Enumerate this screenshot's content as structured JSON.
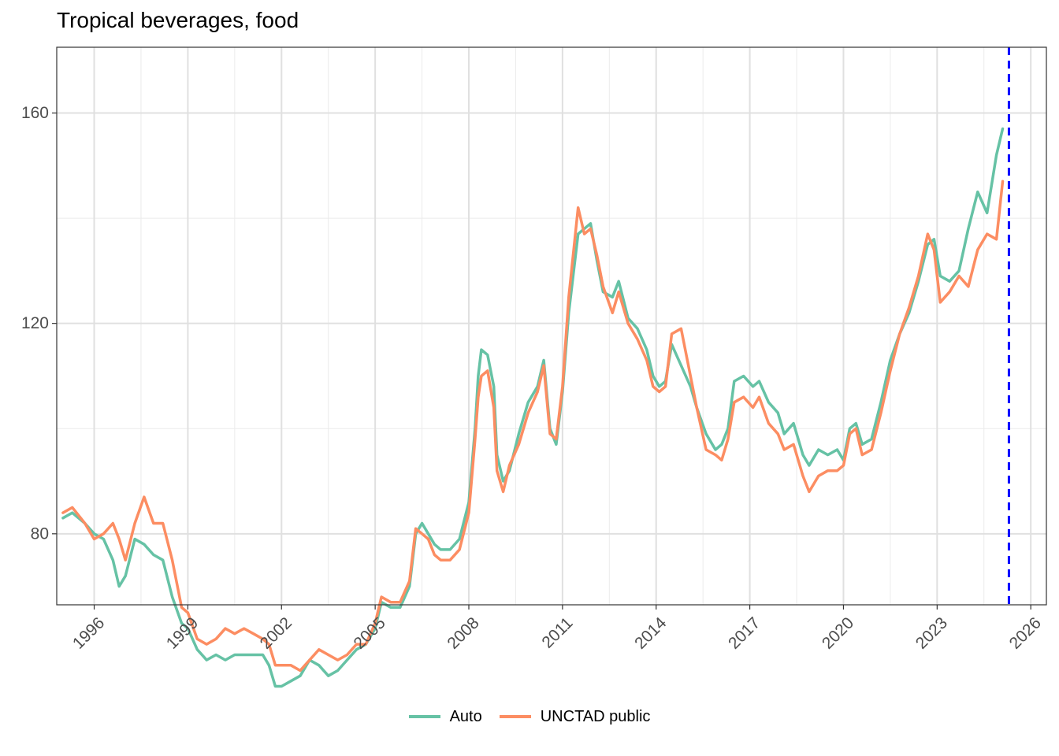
{
  "chart_data": {
    "type": "line",
    "title": "Tropical beverages, food",
    "xlabel": "",
    "ylabel": "",
    "xlim": [
      1994.8,
      2026.5
    ],
    "ylim": [
      66.5,
      172.5
    ],
    "x_ticks": [
      1996,
      1999,
      2002,
      2005,
      2008,
      2011,
      2014,
      2017,
      2020,
      2023,
      2026
    ],
    "x_tick_labels": [
      "1996",
      "1999",
      "2002",
      "2005",
      "2008",
      "2011",
      "2014",
      "2017",
      "2020",
      "2023",
      "2026"
    ],
    "y_ticks": [
      80,
      120,
      160
    ],
    "y_tick_labels": [
      "80",
      "120",
      "160"
    ],
    "grid": true,
    "legend_position": "bottom",
    "reference_line": {
      "x": 2025.3,
      "color": "#0000ff",
      "style": "dashed"
    },
    "series": [
      {
        "name": "Auto",
        "color": "#66c2a5",
        "points": [
          [
            1995.0,
            83
          ],
          [
            1995.3,
            84
          ],
          [
            1995.7,
            82
          ],
          [
            1996.0,
            80
          ],
          [
            1996.3,
            79
          ],
          [
            1996.6,
            75
          ],
          [
            1996.8,
            70
          ],
          [
            1997.0,
            72
          ],
          [
            1997.3,
            79
          ],
          [
            1997.6,
            78
          ],
          [
            1997.9,
            76
          ],
          [
            1998.2,
            75
          ],
          [
            1998.5,
            68
          ],
          [
            1998.8,
            63
          ],
          [
            1999.0,
            62
          ],
          [
            1999.3,
            58
          ],
          [
            1999.6,
            56
          ],
          [
            1999.9,
            57
          ],
          [
            2000.2,
            56
          ],
          [
            2000.5,
            57
          ],
          [
            2000.8,
            57
          ],
          [
            2001.1,
            57
          ],
          [
            2001.4,
            57
          ],
          [
            2001.6,
            55
          ],
          [
            2001.8,
            51
          ],
          [
            2002.0,
            51
          ],
          [
            2002.3,
            52
          ],
          [
            2002.6,
            53
          ],
          [
            2002.9,
            56
          ],
          [
            2003.2,
            55
          ],
          [
            2003.5,
            53
          ],
          [
            2003.8,
            54
          ],
          [
            2004.1,
            56
          ],
          [
            2004.4,
            58
          ],
          [
            2004.7,
            59
          ],
          [
            2005.0,
            62
          ],
          [
            2005.2,
            67
          ],
          [
            2005.5,
            66
          ],
          [
            2005.8,
            66
          ],
          [
            2006.1,
            70
          ],
          [
            2006.3,
            80
          ],
          [
            2006.5,
            82
          ],
          [
            2006.7,
            80
          ],
          [
            2006.9,
            78
          ],
          [
            2007.1,
            77
          ],
          [
            2007.4,
            77
          ],
          [
            2007.7,
            79
          ],
          [
            2008.0,
            86
          ],
          [
            2008.2,
            100
          ],
          [
            2008.3,
            110
          ],
          [
            2008.4,
            115
          ],
          [
            2008.6,
            114
          ],
          [
            2008.8,
            108
          ],
          [
            2008.9,
            95
          ],
          [
            2009.1,
            90
          ],
          [
            2009.3,
            92
          ],
          [
            2009.6,
            99
          ],
          [
            2009.9,
            105
          ],
          [
            2010.2,
            108
          ],
          [
            2010.4,
            113
          ],
          [
            2010.6,
            100
          ],
          [
            2010.8,
            97
          ],
          [
            2011.0,
            107
          ],
          [
            2011.2,
            122
          ],
          [
            2011.5,
            137
          ],
          [
            2011.7,
            138
          ],
          [
            2011.9,
            139
          ],
          [
            2012.1,
            132
          ],
          [
            2012.3,
            126
          ],
          [
            2012.6,
            125
          ],
          [
            2012.8,
            128
          ],
          [
            2013.1,
            121
          ],
          [
            2013.4,
            119
          ],
          [
            2013.7,
            115
          ],
          [
            2013.9,
            110
          ],
          [
            2014.1,
            108
          ],
          [
            2014.3,
            109
          ],
          [
            2014.5,
            116
          ],
          [
            2014.8,
            112
          ],
          [
            2015.1,
            108
          ],
          [
            2015.3,
            104
          ],
          [
            2015.6,
            99
          ],
          [
            2015.9,
            96
          ],
          [
            2016.1,
            97
          ],
          [
            2016.3,
            100
          ],
          [
            2016.5,
            109
          ],
          [
            2016.8,
            110
          ],
          [
            2017.1,
            108
          ],
          [
            2017.3,
            109
          ],
          [
            2017.6,
            105
          ],
          [
            2017.9,
            103
          ],
          [
            2018.1,
            99
          ],
          [
            2018.4,
            101
          ],
          [
            2018.7,
            95
          ],
          [
            2018.9,
            93
          ],
          [
            2019.2,
            96
          ],
          [
            2019.5,
            95
          ],
          [
            2019.8,
            96
          ],
          [
            2020.0,
            94
          ],
          [
            2020.2,
            100
          ],
          [
            2020.4,
            101
          ],
          [
            2020.6,
            97
          ],
          [
            2020.9,
            98
          ],
          [
            2021.2,
            105
          ],
          [
            2021.5,
            113
          ],
          [
            2021.8,
            118
          ],
          [
            2022.1,
            122
          ],
          [
            2022.4,
            128
          ],
          [
            2022.7,
            135
          ],
          [
            2022.9,
            136
          ],
          [
            2023.1,
            129
          ],
          [
            2023.4,
            128
          ],
          [
            2023.7,
            130
          ],
          [
            2024.0,
            138
          ],
          [
            2024.3,
            145
          ],
          [
            2024.6,
            141
          ],
          [
            2024.9,
            152
          ],
          [
            2025.1,
            157
          ]
        ]
      },
      {
        "name": "UNCTAD public",
        "color": "#fc8d62",
        "points": [
          [
            1995.0,
            84
          ],
          [
            1995.3,
            85
          ],
          [
            1995.7,
            82
          ],
          [
            1996.0,
            79
          ],
          [
            1996.3,
            80
          ],
          [
            1996.6,
            82
          ],
          [
            1996.8,
            79
          ],
          [
            1997.0,
            75
          ],
          [
            1997.3,
            82
          ],
          [
            1997.6,
            87
          ],
          [
            1997.9,
            82
          ],
          [
            1998.2,
            82
          ],
          [
            1998.5,
            75
          ],
          [
            1998.8,
            66
          ],
          [
            1999.0,
            65
          ],
          [
            1999.3,
            60
          ],
          [
            1999.6,
            59
          ],
          [
            1999.9,
            60
          ],
          [
            2000.2,
            62
          ],
          [
            2000.5,
            61
          ],
          [
            2000.8,
            62
          ],
          [
            2001.1,
            61
          ],
          [
            2001.4,
            60
          ],
          [
            2001.6,
            59
          ],
          [
            2001.8,
            55
          ],
          [
            2002.0,
            55
          ],
          [
            2002.3,
            55
          ],
          [
            2002.6,
            54
          ],
          [
            2002.9,
            56
          ],
          [
            2003.2,
            58
          ],
          [
            2003.5,
            57
          ],
          [
            2003.8,
            56
          ],
          [
            2004.1,
            57
          ],
          [
            2004.4,
            59
          ],
          [
            2004.7,
            59
          ],
          [
            2005.0,
            63
          ],
          [
            2005.2,
            68
          ],
          [
            2005.5,
            67
          ],
          [
            2005.8,
            67
          ],
          [
            2006.1,
            71
          ],
          [
            2006.3,
            81
          ],
          [
            2006.5,
            80
          ],
          [
            2006.7,
            79
          ],
          [
            2006.9,
            76
          ],
          [
            2007.1,
            75
          ],
          [
            2007.4,
            75
          ],
          [
            2007.7,
            77
          ],
          [
            2008.0,
            84
          ],
          [
            2008.2,
            98
          ],
          [
            2008.3,
            106
          ],
          [
            2008.4,
            110
          ],
          [
            2008.6,
            111
          ],
          [
            2008.8,
            104
          ],
          [
            2008.9,
            92
          ],
          [
            2009.1,
            88
          ],
          [
            2009.3,
            93
          ],
          [
            2009.6,
            97
          ],
          [
            2009.9,
            103
          ],
          [
            2010.2,
            107
          ],
          [
            2010.4,
            112
          ],
          [
            2010.6,
            99
          ],
          [
            2010.8,
            98
          ],
          [
            2011.0,
            108
          ],
          [
            2011.2,
            125
          ],
          [
            2011.5,
            142
          ],
          [
            2011.7,
            137
          ],
          [
            2011.9,
            138
          ],
          [
            2012.1,
            133
          ],
          [
            2012.3,
            127
          ],
          [
            2012.6,
            122
          ],
          [
            2012.8,
            126
          ],
          [
            2013.1,
            120
          ],
          [
            2013.4,
            117
          ],
          [
            2013.7,
            113
          ],
          [
            2013.9,
            108
          ],
          [
            2014.1,
            107
          ],
          [
            2014.3,
            108
          ],
          [
            2014.5,
            118
          ],
          [
            2014.8,
            119
          ],
          [
            2015.1,
            110
          ],
          [
            2015.3,
            104
          ],
          [
            2015.6,
            96
          ],
          [
            2015.9,
            95
          ],
          [
            2016.1,
            94
          ],
          [
            2016.3,
            98
          ],
          [
            2016.5,
            105
          ],
          [
            2016.8,
            106
          ],
          [
            2017.1,
            104
          ],
          [
            2017.3,
            106
          ],
          [
            2017.6,
            101
          ],
          [
            2017.9,
            99
          ],
          [
            2018.1,
            96
          ],
          [
            2018.4,
            97
          ],
          [
            2018.7,
            91
          ],
          [
            2018.9,
            88
          ],
          [
            2019.2,
            91
          ],
          [
            2019.5,
            92
          ],
          [
            2019.8,
            92
          ],
          [
            2020.0,
            93
          ],
          [
            2020.2,
            99
          ],
          [
            2020.4,
            100
          ],
          [
            2020.6,
            95
          ],
          [
            2020.9,
            96
          ],
          [
            2021.2,
            103
          ],
          [
            2021.5,
            111
          ],
          [
            2021.8,
            118
          ],
          [
            2022.1,
            123
          ],
          [
            2022.4,
            129
          ],
          [
            2022.7,
            137
          ],
          [
            2022.9,
            134
          ],
          [
            2023.1,
            124
          ],
          [
            2023.4,
            126
          ],
          [
            2023.7,
            129
          ],
          [
            2024.0,
            127
          ],
          [
            2024.3,
            134
          ],
          [
            2024.6,
            137
          ],
          [
            2024.9,
            136
          ],
          [
            2025.1,
            147
          ]
        ]
      }
    ]
  }
}
